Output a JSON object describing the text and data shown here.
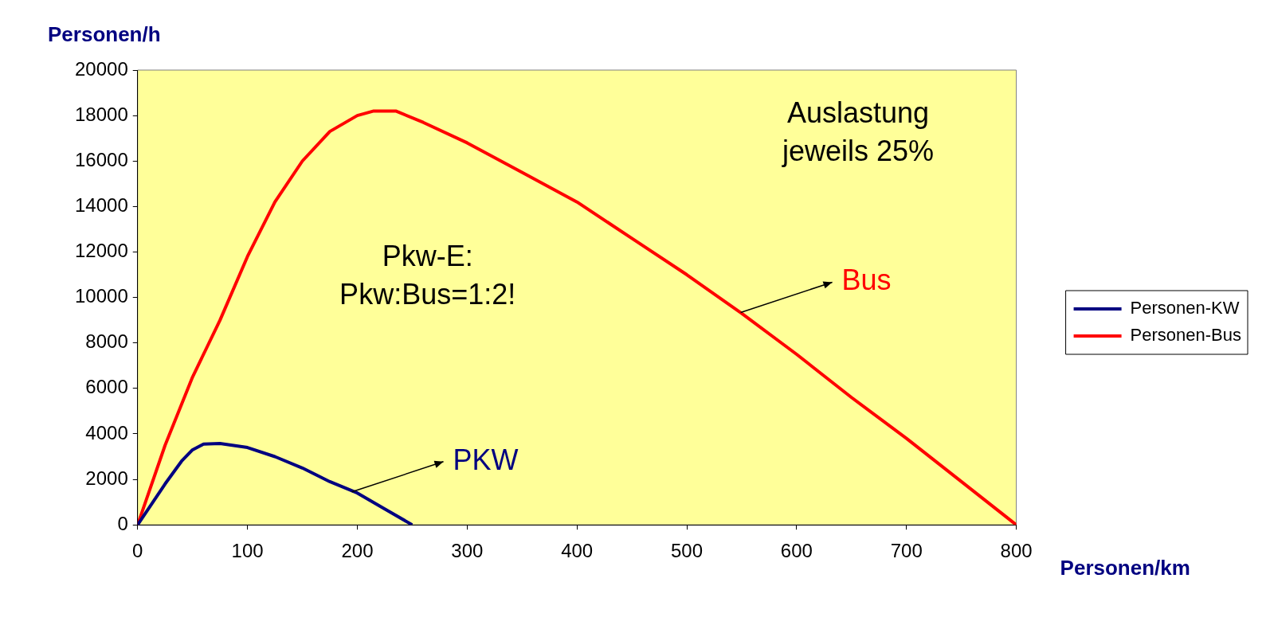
{
  "chart_data": {
    "type": "line",
    "xlabel": "Personen/km",
    "ylabel": "Personen/h",
    "xlim": [
      0,
      800
    ],
    "xticks": [
      0,
      100,
      200,
      300,
      400,
      500,
      600,
      700,
      800
    ],
    "ylim": [
      0,
      20000
    ],
    "yticks": [
      0,
      2000,
      4000,
      6000,
      8000,
      10000,
      12000,
      14000,
      16000,
      18000,
      20000
    ],
    "legend": "right",
    "marker": "none",
    "series": [
      {
        "name": "Personen-KW",
        "color": "#000080",
        "x": [
          0,
          25,
          40,
          50,
          60,
          75,
          100,
          125,
          150,
          175,
          200,
          225,
          250
        ],
        "values": [
          0,
          1800,
          2800,
          3300,
          3550,
          3580,
          3400,
          3000,
          2500,
          1900,
          1400,
          700,
          0
        ]
      },
      {
        "name": "Personen-Bus",
        "color": "#ff0000",
        "x": [
          0,
          25,
          50,
          75,
          100,
          125,
          150,
          175,
          200,
          215,
          235,
          260,
          300,
          350,
          400,
          450,
          500,
          550,
          600,
          650,
          700,
          750,
          800
        ],
        "values": [
          0,
          3500,
          6500,
          9000,
          11800,
          14200,
          16000,
          17300,
          18000,
          18200,
          18200,
          17700,
          16800,
          15500,
          14200,
          12600,
          11000,
          9300,
          7500,
          5600,
          3800,
          1900,
          0
        ]
      }
    ],
    "annotations": [
      "Auslastung\njeweils 25%",
      "Pkw-E:\nPkw:Bus=1:2!",
      {
        "text": "PKW",
        "x": 195,
        "y": 1450
      },
      {
        "text": "Bus",
        "x": 549,
        "y": 9340
      }
    ]
  }
}
